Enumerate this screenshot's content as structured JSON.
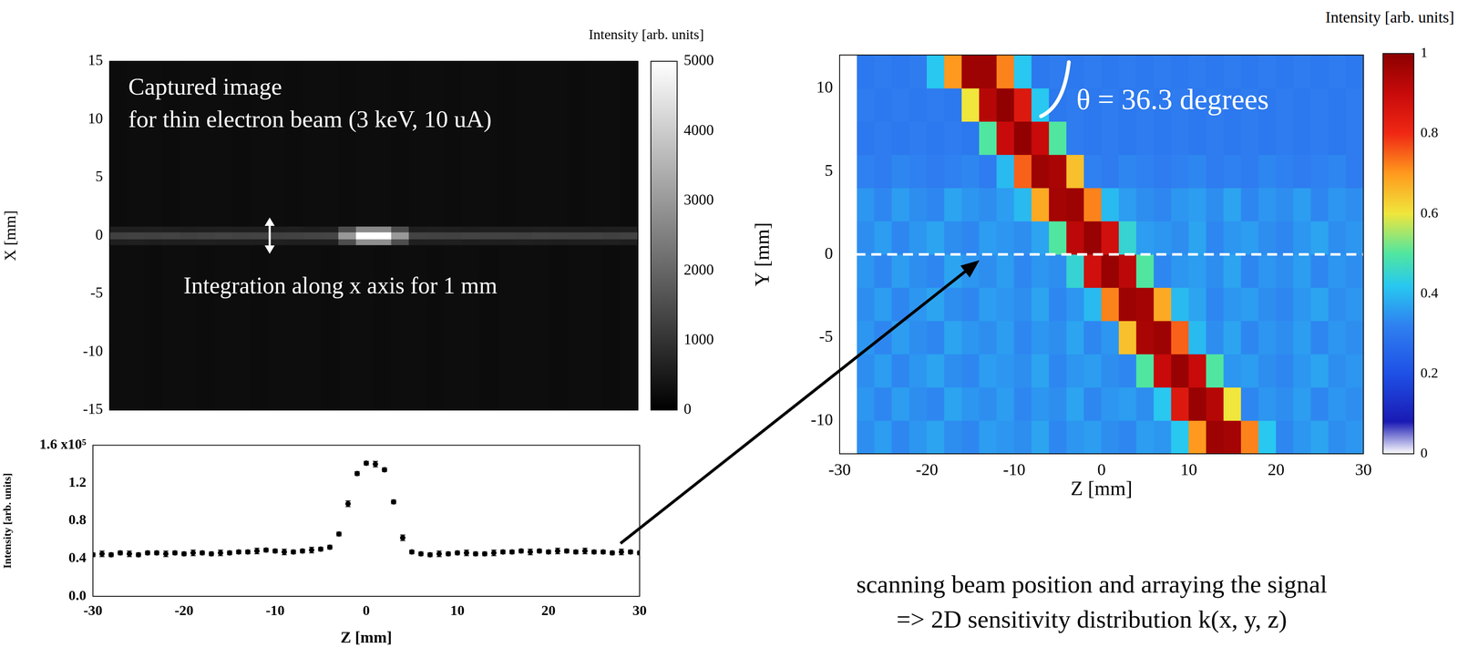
{
  "chart_data": [
    {
      "type": "heatmap",
      "color": "gray",
      "tick_labels": "y",
      "annotations": [
        "Captured image",
        "for thin electron beam (3 keV, 10 uA)",
        "Integration along x axis for 1 mm"
      ],
      "y_label": "X [mm]",
      "xlim": [
        -30,
        30
      ],
      "ylim": [
        -15,
        15
      ],
      "yticks": [
        -15,
        -10,
        -5,
        0,
        5,
        10,
        15
      ],
      "x_edges": [
        -30,
        -28,
        -26,
        -24,
        -22,
        -20,
        -18,
        -16,
        -14,
        -12,
        -10,
        -8,
        -6,
        -4,
        -2,
        0,
        2,
        4,
        6,
        8,
        10,
        12,
        14,
        16,
        18,
        20,
        22,
        24,
        26,
        28,
        30
      ],
      "y_edges": [
        -15,
        -0.8,
        -0.3,
        0.3,
        0.8,
        15
      ],
      "values": [
        [
          250,
          260,
          240,
          255,
          250,
          245,
          260,
          250,
          240,
          255,
          250,
          260,
          245,
          250,
          255,
          240,
          250,
          260,
          245,
          255,
          250,
          240,
          260,
          250,
          255,
          245,
          250,
          260,
          240,
          250
        ],
        [
          600,
          620,
          590,
          610,
          600,
          630,
          600,
          610,
          590,
          620,
          600,
          610,
          600,
          1500,
          2800,
          2800,
          1500,
          610,
          600,
          620,
          590,
          610,
          600,
          620,
          600,
          590,
          610,
          600,
          620,
          600
        ],
        [
          1250,
          1300,
          1280,
          1320,
          1260,
          1300,
          1340,
          1290,
          1310,
          1270,
          1300,
          1330,
          1350,
          3000,
          5000,
          5000,
          3000,
          1320,
          1300,
          1280,
          1310,
          1290,
          1300,
          1270,
          1310,
          1290,
          1280,
          1300,
          1260,
          1290
        ],
        [
          610,
          600,
          620,
          600,
          590,
          610,
          620,
          600,
          610,
          600,
          620,
          590,
          610,
          1500,
          2700,
          2700,
          1500,
          600,
          620,
          610,
          590,
          600,
          610,
          600,
          620,
          600,
          610,
          590,
          600,
          610
        ],
        [
          245,
          255,
          250,
          240,
          260,
          250,
          255,
          245,
          250,
          260,
          240,
          250,
          255,
          245,
          260,
          250,
          240,
          255,
          250,
          245,
          260,
          250,
          240,
          255,
          250,
          260,
          245,
          250,
          255,
          240
        ]
      ],
      "colorbar": {
        "label": "Intensity [arb. units]",
        "range": [
          0,
          5000
        ],
        "ticks": [
          0,
          1000,
          2000,
          3000,
          4000,
          5000
        ]
      }
    },
    {
      "type": "scatter",
      "color": "#000000",
      "marker": "circle",
      "x_label": "Z [mm]",
      "y_label": "Intensity [arb. units]",
      "xlim": [
        -30,
        30
      ],
      "xticks": [
        -30,
        -20,
        -10,
        0,
        10,
        20,
        30
      ],
      "ylim": [
        0,
        1.6
      ],
      "yticks": [
        {
          "value": 0,
          "label": "0.0"
        },
        0.4,
        0.8,
        1.2,
        {
          "value": 1.6,
          "label": "1.6 x10⁵"
        }
      ],
      "x": [
        -30,
        -29,
        -28,
        -27,
        -26,
        -25,
        -24,
        -23,
        -22,
        -21,
        -20,
        -19,
        -18,
        -17,
        -16,
        -15,
        -14,
        -13,
        -12,
        -11,
        -10,
        -9,
        -8,
        -7,
        -6,
        -5,
        -4,
        -3,
        -2,
        -1,
        0,
        1,
        2,
        3,
        4,
        5,
        6,
        7,
        8,
        9,
        10,
        11,
        12,
        13,
        14,
        15,
        16,
        17,
        18,
        19,
        20,
        21,
        22,
        23,
        24,
        25,
        26,
        27,
        28,
        29,
        30
      ],
      "values": [
        0.44,
        0.45,
        0.44,
        0.46,
        0.45,
        0.44,
        0.46,
        0.46,
        0.45,
        0.46,
        0.45,
        0.46,
        0.46,
        0.45,
        0.46,
        0.46,
        0.47,
        0.47,
        0.48,
        0.49,
        0.48,
        0.47,
        0.47,
        0.48,
        0.49,
        0.5,
        0.52,
        0.66,
        0.98,
        1.3,
        1.41,
        1.4,
        1.34,
        1.0,
        0.62,
        0.47,
        0.45,
        0.44,
        0.45,
        0.45,
        0.46,
        0.46,
        0.45,
        0.45,
        0.46,
        0.47,
        0.47,
        0.48,
        0.47,
        0.48,
        0.47,
        0.48,
        0.48,
        0.47,
        0.48,
        0.47,
        0.47,
        0.46,
        0.47,
        0.47,
        0.46
      ],
      "errors": [
        0.02,
        0.03,
        0.02,
        0.02,
        0.03,
        0.02,
        0.02,
        0.02,
        0.03,
        0.02,
        0.02,
        0.03,
        0.02,
        0.02,
        0.03,
        0.02,
        0.02,
        0.02,
        0.03,
        0.02,
        0.02,
        0.03,
        0.02,
        0.02,
        0.03,
        0.02,
        0.02,
        0.02,
        0.03,
        0.02,
        0.02,
        0.03,
        0.02,
        0.02,
        0.03,
        0.02,
        0.02,
        0.02,
        0.03,
        0.02,
        0.02,
        0.03,
        0.02,
        0.02,
        0.03,
        0.02,
        0.02,
        0.02,
        0.03,
        0.02,
        0.02,
        0.03,
        0.02,
        0.02,
        0.03,
        0.02,
        0.02,
        0.02,
        0.03,
        0.02,
        0.02
      ]
    },
    {
      "type": "heatmap",
      "annotations": [
        "θ = 36.3 degrees"
      ],
      "x_label": "Z [mm]",
      "y_label": "Y [mm]",
      "xlim": [
        -30,
        30
      ],
      "xticks": [
        -30,
        -20,
        -10,
        0,
        10,
        20,
        30
      ],
      "ylim": [
        -12,
        12
      ],
      "yticks": [
        -10,
        -5,
        0,
        5,
        10
      ],
      "hline": 0,
      "x_edges": [
        -28,
        -26,
        -24,
        -22,
        -20,
        -18,
        -16,
        -14,
        -12,
        -10,
        -8,
        -6,
        -4,
        -2,
        0,
        2,
        4,
        6,
        8,
        10,
        12,
        14,
        16,
        18,
        20,
        22,
        24,
        26,
        28,
        30
      ],
      "y_edges": [
        -12,
        -10,
        -8,
        -6,
        -4,
        -2,
        0,
        2,
        4,
        6,
        8,
        10,
        12
      ],
      "values": [
        [
          0.34,
          0.36,
          0.33,
          0.35,
          0.37,
          0.34,
          0.33,
          0.36,
          0.35,
          0.34,
          0.37,
          0.33,
          0.35,
          0.36,
          0.34,
          0.33,
          0.36,
          0.35,
          0.42,
          0.7,
          0.97,
          0.96,
          0.72,
          0.42,
          0.33,
          0.35,
          0.37,
          0.34,
          0.35
        ],
        [
          0.35,
          0.33,
          0.36,
          0.34,
          0.33,
          0.37,
          0.35,
          0.34,
          0.36,
          0.33,
          0.35,
          0.34,
          0.37,
          0.33,
          0.35,
          0.36,
          0.34,
          0.42,
          0.85,
          0.98,
          0.93,
          0.6,
          0.33,
          0.35,
          0.34,
          0.36,
          0.33,
          0.35,
          0.34
        ],
        [
          0.34,
          0.36,
          0.33,
          0.35,
          0.37,
          0.34,
          0.33,
          0.36,
          0.35,
          0.34,
          0.37,
          0.33,
          0.35,
          0.36,
          0.34,
          0.33,
          0.5,
          0.9,
          0.98,
          0.9,
          0.5,
          0.35,
          0.36,
          0.34,
          0.33,
          0.35,
          0.37,
          0.34,
          0.35
        ],
        [
          0.35,
          0.33,
          0.36,
          0.34,
          0.33,
          0.37,
          0.35,
          0.34,
          0.36,
          0.33,
          0.35,
          0.34,
          0.37,
          0.33,
          0.35,
          0.65,
          0.95,
          0.97,
          0.75,
          0.4,
          0.34,
          0.37,
          0.33,
          0.35,
          0.34,
          0.36,
          0.33,
          0.35,
          0.34
        ],
        [
          0.34,
          0.36,
          0.33,
          0.35,
          0.37,
          0.34,
          0.33,
          0.36,
          0.35,
          0.34,
          0.37,
          0.33,
          0.35,
          0.4,
          0.72,
          0.97,
          0.96,
          0.68,
          0.4,
          0.37,
          0.33,
          0.35,
          0.36,
          0.34,
          0.33,
          0.35,
          0.37,
          0.34,
          0.35
        ],
        [
          0.35,
          0.33,
          0.36,
          0.34,
          0.33,
          0.37,
          0.35,
          0.34,
          0.36,
          0.33,
          0.35,
          0.34,
          0.45,
          0.88,
          0.98,
          0.92,
          0.5,
          0.33,
          0.35,
          0.36,
          0.34,
          0.37,
          0.33,
          0.35,
          0.34,
          0.36,
          0.33,
          0.35,
          0.34
        ],
        [
          0.34,
          0.36,
          0.33,
          0.35,
          0.37,
          0.34,
          0.33,
          0.36,
          0.35,
          0.34,
          0.37,
          0.5,
          0.92,
          0.98,
          0.88,
          0.45,
          0.36,
          0.35,
          0.34,
          0.37,
          0.33,
          0.35,
          0.36,
          0.34,
          0.33,
          0.35,
          0.37,
          0.34,
          0.35
        ],
        [
          0.35,
          0.33,
          0.36,
          0.34,
          0.33,
          0.37,
          0.35,
          0.34,
          0.36,
          0.4,
          0.68,
          0.96,
          0.97,
          0.72,
          0.4,
          0.36,
          0.34,
          0.33,
          0.35,
          0.36,
          0.34,
          0.37,
          0.33,
          0.35,
          0.34,
          0.36,
          0.33,
          0.35,
          0.34
        ],
        [
          0.32,
          0.31,
          0.33,
          0.32,
          0.31,
          0.32,
          0.33,
          0.31,
          0.4,
          0.75,
          0.97,
          0.95,
          0.65,
          0.32,
          0.31,
          0.33,
          0.32,
          0.31,
          0.32,
          0.33,
          0.31,
          0.32,
          0.31,
          0.33,
          0.32,
          0.31,
          0.32,
          0.33,
          0.31
        ],
        [
          0.3,
          0.31,
          0.3,
          0.31,
          0.3,
          0.31,
          0.3,
          0.5,
          0.9,
          0.99,
          0.9,
          0.5,
          0.31,
          0.3,
          0.31,
          0.3,
          0.31,
          0.3,
          0.31,
          0.3,
          0.31,
          0.3,
          0.31,
          0.3,
          0.31,
          0.3,
          0.31,
          0.3,
          0.31
        ],
        [
          0.31,
          0.3,
          0.31,
          0.3,
          0.31,
          0.3,
          0.6,
          0.93,
          0.99,
          0.85,
          0.42,
          0.3,
          0.31,
          0.3,
          0.31,
          0.3,
          0.31,
          0.3,
          0.31,
          0.3,
          0.31,
          0.3,
          0.31,
          0.3,
          0.31,
          0.3,
          0.31,
          0.3,
          0.31
        ],
        [
          0.3,
          0.31,
          0.3,
          0.31,
          0.42,
          0.7,
          0.97,
          0.97,
          0.72,
          0.42,
          0.3,
          0.31,
          0.3,
          0.31,
          0.3,
          0.31,
          0.3,
          0.31,
          0.3,
          0.31,
          0.3,
          0.31,
          0.3,
          0.31,
          0.3,
          0.31,
          0.3,
          0.31,
          0.3
        ]
      ],
      "colorbar": {
        "label": "Intensity [arb. units]",
        "range": [
          0,
          1
        ],
        "ticks": [
          0,
          0.2,
          0.4,
          0.6,
          0.8,
          1
        ]
      }
    }
  ],
  "caption": [
    "scanning beam position and arraying the signal",
    "=> 2D sensitivity distribution k(x, y, z)"
  ]
}
